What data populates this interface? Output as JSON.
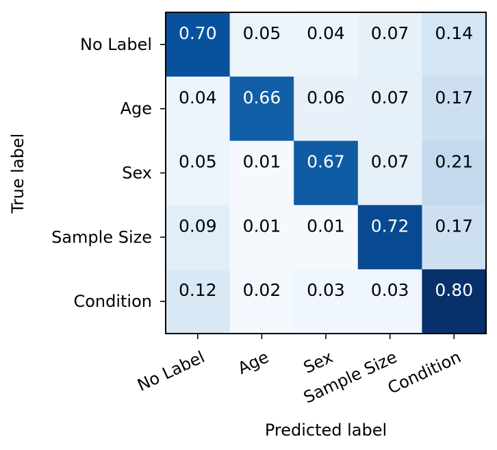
{
  "chart_data": {
    "type": "heatmap",
    "title": "",
    "xlabel": "Predicted label",
    "ylabel": "True label",
    "x_categories": [
      "No Label",
      "Age",
      "Sex",
      "Sample Size",
      "Condition"
    ],
    "y_categories": [
      "No Label",
      "Age",
      "Sex",
      "Sample Size",
      "Condition"
    ],
    "values": [
      [
        0.7,
        0.05,
        0.04,
        0.07,
        0.14
      ],
      [
        0.04,
        0.66,
        0.06,
        0.07,
        0.17
      ],
      [
        0.05,
        0.01,
        0.67,
        0.07,
        0.21
      ],
      [
        0.09,
        0.01,
        0.01,
        0.72,
        0.17
      ],
      [
        0.12,
        0.02,
        0.03,
        0.03,
        0.8
      ]
    ],
    "value_format": "0.00",
    "colormap": "Blues",
    "color_range": [
      0.0,
      0.8
    ],
    "x_tick_rotation_deg": 25,
    "grid": false,
    "legend": "none",
    "colors": {
      "low": "#f7fbff",
      "high": "#08306b",
      "text_dark": "#000000",
      "text_light": "#ffffff",
      "frame": "#000000"
    }
  }
}
